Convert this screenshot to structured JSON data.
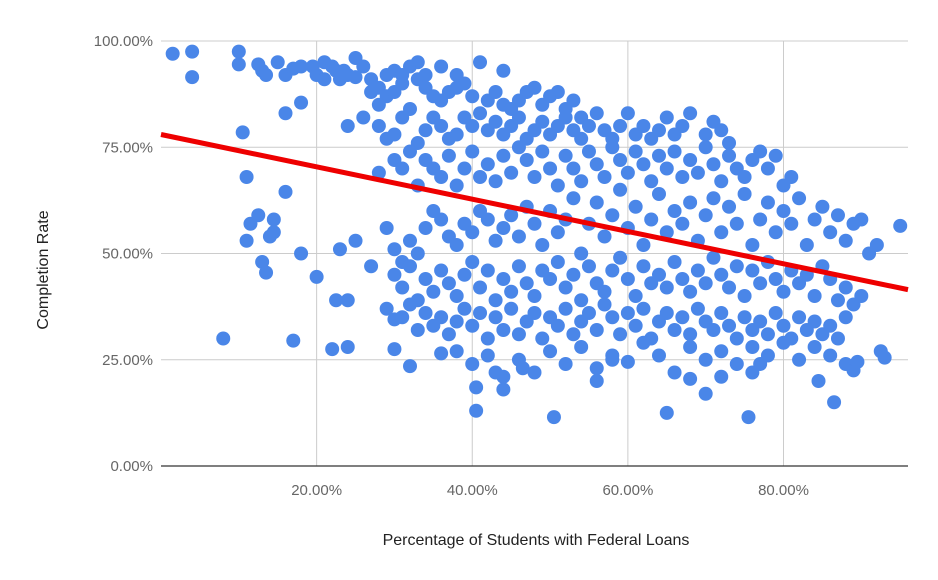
{
  "chart_data": {
    "type": "scatter",
    "title": "",
    "xlabel": "Percentage of Students with Federal Loans",
    "ylabel": "Completion Rate",
    "xlim": [
      0,
      96
    ],
    "ylim": [
      0,
      100
    ],
    "x_ticks": [
      {
        "value": 20,
        "label": "20.00%"
      },
      {
        "value": 40,
        "label": "40.00%"
      },
      {
        "value": 60,
        "label": "60.00%"
      },
      {
        "value": 80,
        "label": "80.00%"
      }
    ],
    "y_ticks": [
      {
        "value": 0,
        "label": "0.00%"
      },
      {
        "value": 25,
        "label": "25.00%"
      },
      {
        "value": 50,
        "label": "50.00%"
      },
      {
        "value": 75,
        "label": "75.00%"
      },
      {
        "value": 100,
        "label": "100.00%"
      }
    ],
    "grid": true,
    "legend": "none",
    "point_color": "#4a86e8",
    "trendline": {
      "color": "#ee0000",
      "x": [
        0,
        96
      ],
      "y": [
        78,
        41.5
      ]
    },
    "points": [
      [
        1.5,
        97
      ],
      [
        4,
        97.5
      ],
      [
        4,
        91.5
      ],
      [
        10,
        97.5
      ],
      [
        10,
        94.5
      ],
      [
        12.5,
        94.5
      ],
      [
        13,
        93
      ],
      [
        13.5,
        92
      ],
      [
        15,
        95
      ],
      [
        16,
        92
      ],
      [
        17,
        93.5
      ],
      [
        18,
        94
      ],
      [
        19.5,
        94
      ],
      [
        21,
        95
      ],
      [
        22,
        94
      ],
      [
        23.5,
        93
      ],
      [
        24,
        92
      ],
      [
        25,
        96
      ],
      [
        26,
        94
      ],
      [
        27,
        91
      ],
      [
        28,
        89
      ],
      [
        29,
        92
      ],
      [
        30,
        93
      ],
      [
        31,
        92
      ],
      [
        32,
        94
      ],
      [
        33,
        95
      ],
      [
        34,
        92
      ],
      [
        36,
        94
      ],
      [
        38,
        92
      ],
      [
        41,
        95
      ],
      [
        44,
        93
      ],
      [
        20,
        92
      ],
      [
        21,
        91
      ],
      [
        22.5,
        93
      ],
      [
        23,
        91
      ],
      [
        25,
        91.5
      ],
      [
        27,
        88
      ],
      [
        28,
        85
      ],
      [
        29,
        87
      ],
      [
        30,
        88
      ],
      [
        31,
        90
      ],
      [
        33,
        91
      ],
      [
        34,
        89
      ],
      [
        35,
        87
      ],
      [
        36,
        86
      ],
      [
        37,
        88
      ],
      [
        38,
        89
      ],
      [
        39,
        90
      ],
      [
        40,
        87
      ],
      [
        42,
        86
      ],
      [
        43,
        88
      ],
      [
        44,
        85
      ],
      [
        45,
        84
      ],
      [
        46,
        86
      ],
      [
        47,
        88
      ],
      [
        48,
        89
      ],
      [
        49,
        85
      ],
      [
        50,
        87
      ],
      [
        51,
        88
      ],
      [
        52,
        84
      ],
      [
        53,
        86
      ],
      [
        54,
        82
      ],
      [
        18,
        85.5
      ],
      [
        16,
        83
      ],
      [
        10.5,
        78.5
      ],
      [
        24,
        80
      ],
      [
        26,
        82
      ],
      [
        28,
        80
      ],
      [
        29,
        77
      ],
      [
        30,
        78
      ],
      [
        31,
        82
      ],
      [
        32,
        84
      ],
      [
        33,
        76
      ],
      [
        34,
        79
      ],
      [
        35,
        82
      ],
      [
        36,
        80
      ],
      [
        37,
        77
      ],
      [
        38,
        78
      ],
      [
        39,
        82
      ],
      [
        40,
        80
      ],
      [
        41,
        83
      ],
      [
        42,
        79
      ],
      [
        43,
        81
      ],
      [
        44,
        78
      ],
      [
        45,
        80
      ],
      [
        46,
        82
      ],
      [
        47,
        77
      ],
      [
        48,
        79
      ],
      [
        49,
        81
      ],
      [
        50,
        78
      ],
      [
        51,
        80
      ],
      [
        52,
        82
      ],
      [
        53,
        79
      ],
      [
        54,
        77
      ],
      [
        55,
        80
      ],
      [
        56,
        83
      ],
      [
        57,
        79
      ],
      [
        58,
        77
      ],
      [
        59,
        80
      ],
      [
        60,
        83
      ],
      [
        61,
        78
      ],
      [
        62,
        80
      ],
      [
        63,
        77
      ],
      [
        64,
        79
      ],
      [
        65,
        82
      ],
      [
        66,
        78
      ],
      [
        67,
        80
      ],
      [
        68,
        83
      ],
      [
        70,
        78
      ],
      [
        71,
        81
      ],
      [
        72,
        79
      ],
      [
        73,
        76
      ],
      [
        28,
        69
      ],
      [
        30,
        72
      ],
      [
        31,
        70
      ],
      [
        32,
        74
      ],
      [
        33,
        66
      ],
      [
        34,
        72
      ],
      [
        35,
        70
      ],
      [
        36,
        68
      ],
      [
        37,
        73
      ],
      [
        38,
        66
      ],
      [
        39,
        70
      ],
      [
        40,
        74
      ],
      [
        41,
        68
      ],
      [
        42,
        71
      ],
      [
        43,
        67
      ],
      [
        44,
        73
      ],
      [
        45,
        69
      ],
      [
        46,
        75
      ],
      [
        47,
        72
      ],
      [
        48,
        68
      ],
      [
        49,
        74
      ],
      [
        50,
        70
      ],
      [
        51,
        66
      ],
      [
        52,
        73
      ],
      [
        53,
        70
      ],
      [
        54,
        67
      ],
      [
        55,
        74
      ],
      [
        56,
        71
      ],
      [
        57,
        68
      ],
      [
        58,
        75
      ],
      [
        59,
        72
      ],
      [
        60,
        69
      ],
      [
        61,
        74
      ],
      [
        62,
        71
      ],
      [
        63,
        67
      ],
      [
        64,
        73
      ],
      [
        65,
        70
      ],
      [
        66,
        74
      ],
      [
        67,
        68
      ],
      [
        68,
        72
      ],
      [
        69,
        69
      ],
      [
        70,
        75
      ],
      [
        71,
        71
      ],
      [
        72,
        67
      ],
      [
        73,
        73
      ],
      [
        74,
        70
      ],
      [
        75,
        68
      ],
      [
        76,
        72
      ],
      [
        77,
        74
      ],
      [
        78,
        70
      ],
      [
        79,
        73
      ],
      [
        80,
        66
      ],
      [
        81,
        68
      ],
      [
        11,
        68
      ],
      [
        11.5,
        57
      ],
      [
        12.5,
        59
      ],
      [
        14,
        54
      ],
      [
        14.5,
        55
      ],
      [
        14.5,
        58
      ],
      [
        16,
        64.5
      ],
      [
        18,
        50
      ],
      [
        11,
        53
      ],
      [
        13,
        48
      ],
      [
        13.5,
        45.5
      ],
      [
        20,
        44.5
      ],
      [
        23,
        51
      ],
      [
        25,
        53
      ],
      [
        27,
        47
      ],
      [
        29,
        56
      ],
      [
        30,
        51
      ],
      [
        31,
        48
      ],
      [
        32,
        53
      ],
      [
        33,
        50
      ],
      [
        34,
        56
      ],
      [
        35,
        60
      ],
      [
        36,
        58
      ],
      [
        37,
        54
      ],
      [
        38,
        52
      ],
      [
        39,
        57
      ],
      [
        40,
        55
      ],
      [
        41,
        60
      ],
      [
        42,
        58
      ],
      [
        43,
        53
      ],
      [
        44,
        56
      ],
      [
        45,
        59
      ],
      [
        46,
        54
      ],
      [
        47,
        61
      ],
      [
        48,
        57
      ],
      [
        49,
        52
      ],
      [
        50,
        60
      ],
      [
        51,
        55
      ],
      [
        52,
        58
      ],
      [
        53,
        63
      ],
      [
        54,
        50
      ],
      [
        55,
        57
      ],
      [
        56,
        62
      ],
      [
        57,
        54
      ],
      [
        58,
        59
      ],
      [
        59,
        65
      ],
      [
        60,
        56
      ],
      [
        61,
        61
      ],
      [
        62,
        52
      ],
      [
        63,
        58
      ],
      [
        64,
        64
      ],
      [
        65,
        55
      ],
      [
        66,
        60
      ],
      [
        67,
        57
      ],
      [
        68,
        62
      ],
      [
        69,
        53
      ],
      [
        70,
        59
      ],
      [
        71,
        63
      ],
      [
        72,
        55
      ],
      [
        73,
        61
      ],
      [
        74,
        57
      ],
      [
        75,
        64
      ],
      [
        76,
        52
      ],
      [
        77,
        58
      ],
      [
        78,
        62
      ],
      [
        79,
        55
      ],
      [
        80,
        60
      ],
      [
        81,
        57
      ],
      [
        82,
        63
      ],
      [
        83,
        52
      ],
      [
        84,
        58
      ],
      [
        85,
        61
      ],
      [
        86,
        55
      ],
      [
        87,
        59
      ],
      [
        88,
        53
      ],
      [
        89,
        57
      ],
      [
        90,
        58
      ],
      [
        91,
        50
      ],
      [
        92,
        52
      ],
      [
        95,
        56.5
      ],
      [
        30,
        45
      ],
      [
        31,
        42
      ],
      [
        32,
        47
      ],
      [
        33,
        39
      ],
      [
        34,
        44
      ],
      [
        35,
        41
      ],
      [
        36,
        46
      ],
      [
        37,
        43
      ],
      [
        38,
        40
      ],
      [
        39,
        45
      ],
      [
        40,
        48
      ],
      [
        41,
        42
      ],
      [
        42,
        46
      ],
      [
        43,
        39
      ],
      [
        44,
        44
      ],
      [
        45,
        41
      ],
      [
        46,
        47
      ],
      [
        47,
        43
      ],
      [
        48,
        40
      ],
      [
        49,
        46
      ],
      [
        50,
        44
      ],
      [
        51,
        48
      ],
      [
        52,
        42
      ],
      [
        53,
        45
      ],
      [
        54,
        39
      ],
      [
        55,
        47
      ],
      [
        56,
        43
      ],
      [
        57,
        41
      ],
      [
        58,
        46
      ],
      [
        59,
        49
      ],
      [
        60,
        44
      ],
      [
        61,
        40
      ],
      [
        62,
        47
      ],
      [
        63,
        43
      ],
      [
        64,
        45
      ],
      [
        65,
        42
      ],
      [
        66,
        48
      ],
      [
        67,
        44
      ],
      [
        68,
        41
      ],
      [
        69,
        46
      ],
      [
        70,
        43
      ],
      [
        71,
        49
      ],
      [
        72,
        45
      ],
      [
        73,
        42
      ],
      [
        74,
        47
      ],
      [
        75,
        40
      ],
      [
        76,
        46
      ],
      [
        77,
        43
      ],
      [
        78,
        48
      ],
      [
        79,
        44
      ],
      [
        80,
        41
      ],
      [
        81,
        46
      ],
      [
        82,
        43
      ],
      [
        83,
        45
      ],
      [
        84,
        40
      ],
      [
        85,
        47
      ],
      [
        86,
        44
      ],
      [
        87,
        39
      ],
      [
        88,
        42
      ],
      [
        89,
        38
      ],
      [
        90,
        40
      ],
      [
        22.5,
        39
      ],
      [
        24,
        39
      ],
      [
        29,
        37
      ],
      [
        30,
        34.5
      ],
      [
        31,
        35
      ],
      [
        32,
        38
      ],
      [
        33,
        32
      ],
      [
        34,
        36
      ],
      [
        35,
        33
      ],
      [
        36,
        35
      ],
      [
        37,
        31
      ],
      [
        38,
        34
      ],
      [
        39,
        37
      ],
      [
        40,
        33
      ],
      [
        41,
        36
      ],
      [
        42,
        30
      ],
      [
        43,
        35
      ],
      [
        44,
        32
      ],
      [
        45,
        37
      ],
      [
        46,
        31
      ],
      [
        47,
        34
      ],
      [
        48,
        36
      ],
      [
        49,
        30
      ],
      [
        50,
        35
      ],
      [
        51,
        33
      ],
      [
        52,
        37
      ],
      [
        53,
        31
      ],
      [
        54,
        34
      ],
      [
        55,
        36
      ],
      [
        56,
        32
      ],
      [
        57,
        38
      ],
      [
        58,
        35
      ],
      [
        59,
        31
      ],
      [
        60,
        36
      ],
      [
        61,
        33
      ],
      [
        62,
        37
      ],
      [
        63,
        30
      ],
      [
        64,
        34
      ],
      [
        65,
        36
      ],
      [
        66,
        32
      ],
      [
        67,
        35
      ],
      [
        68,
        31
      ],
      [
        69,
        37
      ],
      [
        70,
        34
      ],
      [
        71,
        32
      ],
      [
        72,
        36
      ],
      [
        73,
        33
      ],
      [
        74,
        30
      ],
      [
        75,
        35
      ],
      [
        76,
        32
      ],
      [
        77,
        34
      ],
      [
        78,
        31
      ],
      [
        79,
        36
      ],
      [
        80,
        33
      ],
      [
        81,
        30
      ],
      [
        82,
        35
      ],
      [
        83,
        32
      ],
      [
        84,
        34
      ],
      [
        85,
        31
      ],
      [
        86,
        33
      ],
      [
        87,
        30
      ],
      [
        88,
        35
      ],
      [
        8,
        30
      ],
      [
        17,
        29.5
      ],
      [
        22,
        27.5
      ],
      [
        24,
        28
      ],
      [
        30,
        27.5
      ],
      [
        32,
        23.5
      ],
      [
        36,
        26.5
      ],
      [
        38,
        27
      ],
      [
        40,
        24
      ],
      [
        42,
        26
      ],
      [
        44,
        21
      ],
      [
        46,
        25
      ],
      [
        48,
        22
      ],
      [
        50,
        27
      ],
      [
        52,
        24
      ],
      [
        54,
        28
      ],
      [
        56,
        23
      ],
      [
        58,
        26
      ],
      [
        60,
        24.5
      ],
      [
        62,
        29
      ],
      [
        64,
        26
      ],
      [
        66,
        22
      ],
      [
        68,
        28
      ],
      [
        70,
        25
      ],
      [
        72,
        27
      ],
      [
        74,
        24
      ],
      [
        76,
        28
      ],
      [
        78,
        26
      ],
      [
        80,
        29
      ],
      [
        82,
        25
      ],
      [
        84,
        28
      ],
      [
        86,
        26
      ],
      [
        88,
        24
      ],
      [
        89,
        22.5
      ],
      [
        89.5,
        24.5
      ],
      [
        92.5,
        27
      ],
      [
        93,
        25.5
      ],
      [
        84.5,
        20
      ],
      [
        76,
        22
      ],
      [
        40.5,
        18.5
      ],
      [
        40.5,
        13
      ],
      [
        43,
        22
      ],
      [
        44,
        18
      ],
      [
        46.5,
        23
      ],
      [
        50.5,
        11.5
      ],
      [
        56,
        20
      ],
      [
        65,
        12.5
      ],
      [
        70,
        17
      ],
      [
        72,
        21
      ],
      [
        75.5,
        11.5
      ],
      [
        77,
        24
      ],
      [
        86.5,
        15
      ],
      [
        68,
        20.5
      ],
      [
        58,
        25
      ]
    ]
  }
}
